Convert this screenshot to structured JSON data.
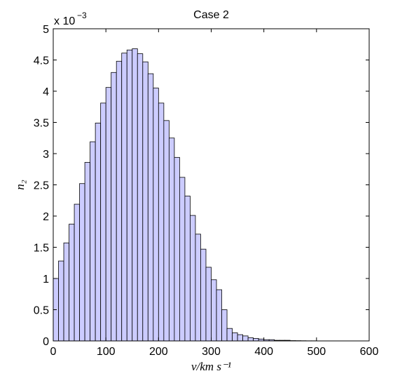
{
  "chart_data": {
    "type": "bar",
    "title": "Case 2",
    "xlabel": "v/km s⁻¹",
    "ylabel": "n₂",
    "y_multiplier": "x 10",
    "y_exponent": "−3",
    "xlim": [
      0,
      600
    ],
    "ylim": [
      0,
      0.005
    ],
    "xticks": [
      0,
      100,
      200,
      300,
      400,
      500,
      600
    ],
    "yticks": [
      0,
      0.0005,
      0.001,
      0.0015,
      0.002,
      0.0025,
      0.003,
      0.0035,
      0.004,
      0.0045,
      0.005
    ],
    "ytick_labels": [
      "0",
      "0.5",
      "1",
      "1.5",
      "2",
      "2.5",
      "3",
      "3.5",
      "4",
      "4.5",
      "5"
    ],
    "bin_width": 10,
    "bin_start": 0,
    "values": [
      0.001,
      0.00128,
      0.00157,
      0.00187,
      0.00219,
      0.00252,
      0.00286,
      0.00319,
      0.00349,
      0.00381,
      0.00406,
      0.0043,
      0.00448,
      0.00461,
      0.00466,
      0.00468,
      0.0046,
      0.00447,
      0.00428,
      0.00405,
      0.00381,
      0.00353,
      0.00325,
      0.00294,
      0.00262,
      0.00232,
      0.00201,
      0.00171,
      0.00147,
      0.00118,
      0.00098,
      0.00082,
      0.0005,
      0.0002,
      0.00013,
      0.0001,
      8e-05,
      5e-05,
      4e-05,
      3e-05,
      2e-05,
      2e-05,
      1e-05,
      1e-05,
      1e-05,
      5e-06,
      4e-06,
      3e-06,
      2e-06,
      2e-06,
      1e-06,
      1e-06,
      1e-06,
      1e-06,
      1e-06,
      1e-06,
      1e-06,
      1e-06,
      1e-06,
      1e-06
    ],
    "bar_color": "#ccccff",
    "bar_edge_color": "#000000",
    "grid": false
  }
}
